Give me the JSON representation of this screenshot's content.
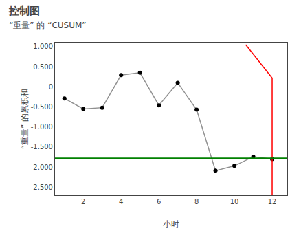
{
  "chart_data": {
    "type": "line",
    "title": "控制图",
    "subtitle": "“重量” 的 “CUSUM”",
    "x_label": "小时",
    "y_label": "“重量” 的累积和",
    "series": [
      {
        "type": "line",
        "color": "#909090",
        "line_style": "solid",
        "x": [
          1,
          2,
          3,
          4,
          5,
          6,
          7,
          8,
          9,
          10,
          11,
          12
        ],
        "values": [
          -0.29,
          -0.55,
          -0.52,
          0.29,
          0.35,
          -0.46,
          0.1,
          -0.57,
          -2.09,
          -1.97,
          -1.74,
          -1.8
        ]
      },
      {
        "type": "scatter",
        "color": "#000000",
        "marker": "circle",
        "x": [
          1,
          2,
          3,
          4,
          5,
          6,
          7,
          8,
          9,
          10,
          11,
          12
        ],
        "values": [
          -0.29,
          -0.55,
          -0.52,
          0.29,
          0.35,
          -0.46,
          0.1,
          -0.57,
          -2.09,
          -1.97,
          -1.74,
          -1.8
        ]
      },
      {
        "type": "hline",
        "color": "#008000",
        "line_style": "solid",
        "values": [
          -1.78
        ]
      },
      {
        "type": "line",
        "color": "#ff0000",
        "line_style": "solid",
        "x": [
          10.6,
          12.0,
          12.0
        ],
        "values": [
          1.05,
          0.22,
          -2.7
        ]
      }
    ],
    "xlim": [
      0.5,
      12.8
    ],
    "ylim": [
      -2.7,
      1.1
    ],
    "xticks": [
      2,
      4,
      6,
      8,
      10,
      12
    ],
    "yticks": [
      {
        "value": 1.0,
        "label": "1.000"
      },
      {
        "value": 0.5,
        "label": "0.500"
      },
      0,
      {
        "value": -0.5,
        "label": "-0.500"
      },
      {
        "value": -1.0,
        "label": "-1.000"
      },
      {
        "value": -1.5,
        "label": "-1.500"
      },
      {
        "value": -2.0,
        "label": "-2.000"
      },
      {
        "value": -2.5,
        "label": "-2.500"
      }
    ],
    "grid": false
  }
}
